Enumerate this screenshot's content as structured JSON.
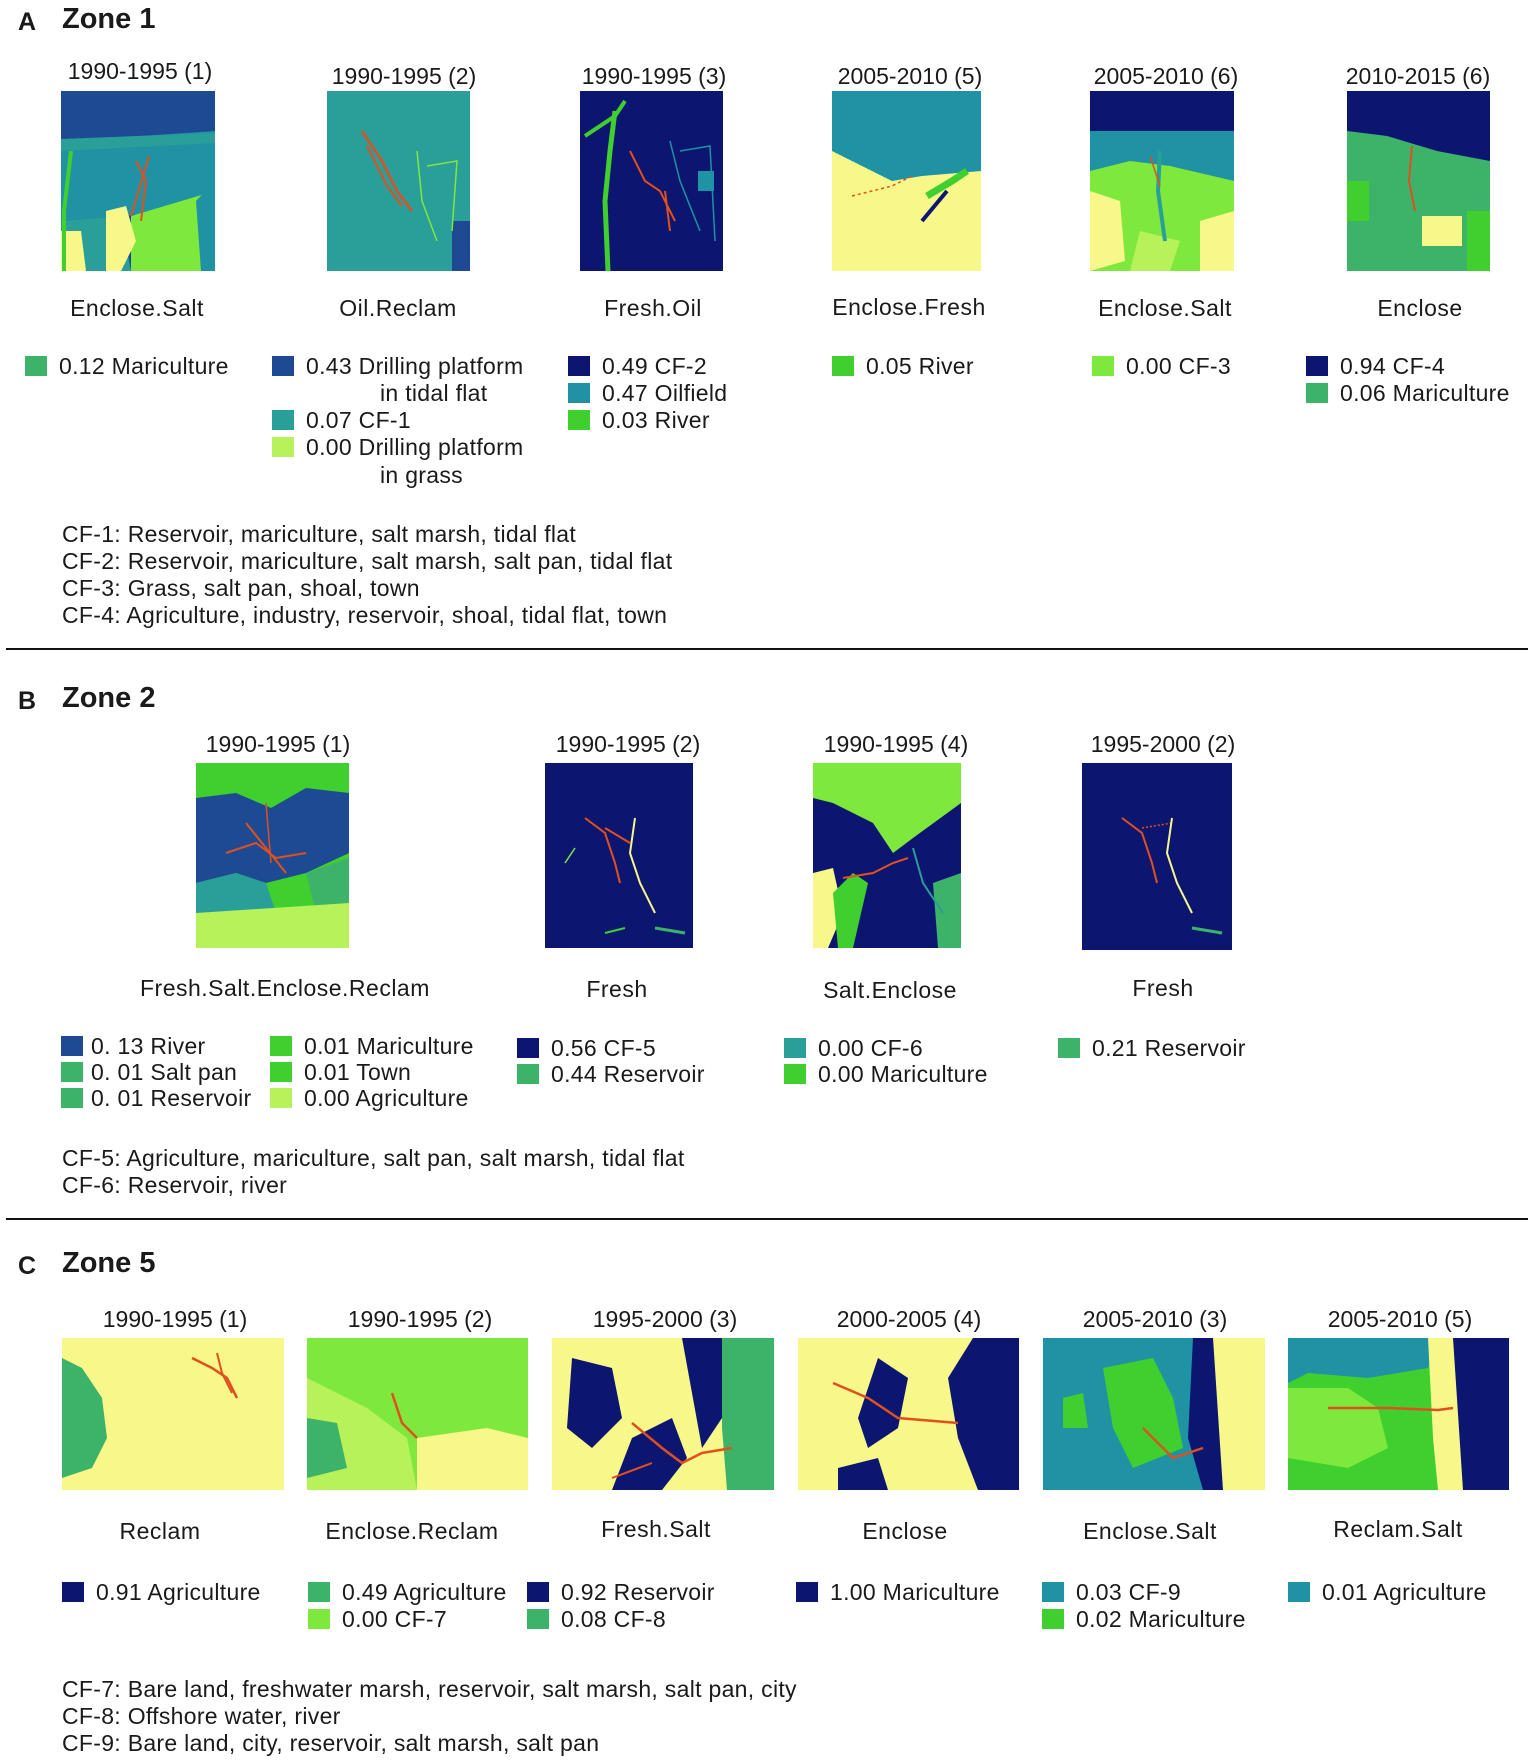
{
  "colors": {
    "navy": "#0c1670",
    "darkblue": "#1e4a93",
    "teal": "#1f93a4",
    "teal2": "#2a9e98",
    "seagreen": "#3db36a",
    "green": "#3fcf2e",
    "lime": "#7fe83c",
    "lightyellow": "#f8f78a",
    "yellowgreen": "#b7f25a",
    "red": "#e0501e"
  },
  "sections": [
    {
      "letter": "A",
      "title": "Zone 1",
      "panels": [
        {
          "period": "1990-1995 (1)",
          "caption": "Enclose.Salt",
          "legend": [
            {
              "swatch": "seagreen",
              "label": "0.12 Mariculture"
            }
          ]
        },
        {
          "period": "1990-1995 (2)",
          "caption": "Oil.Reclam",
          "legend": [
            {
              "swatch": "darkblue",
              "label": "0.43 Drilling platform",
              "cont": "in tidal  flat"
            },
            {
              "swatch": "teal2",
              "label": "0.07 CF-1"
            },
            {
              "swatch": "yellowgreen",
              "label": "0.00 Drilling platform",
              "cont": "in grass"
            }
          ]
        },
        {
          "period": "1990-1995 (3)",
          "caption": "Fresh.Oil",
          "legend": [
            {
              "swatch": "navy",
              "label": "0.49 CF-2"
            },
            {
              "swatch": "teal",
              "label": "0.47 Oilfield"
            },
            {
              "swatch": "green",
              "label": "0.03 River"
            }
          ]
        },
        {
          "period": "2005-2010 (5)",
          "caption": "Enclose.Fresh",
          "legend": [
            {
              "swatch": "green",
              "label": "0.05 River"
            }
          ]
        },
        {
          "period": "2005-2010 (6)",
          "caption": "Enclose.Salt",
          "legend": [
            {
              "swatch": "lime",
              "label": "0.00 CF-3"
            }
          ]
        },
        {
          "period": "2010-2015 (6)",
          "caption": "Enclose",
          "legend": [
            {
              "swatch": "navy",
              "label": "0.94 CF-4"
            },
            {
              "swatch": "seagreen",
              "label": "0.06 Mariculture"
            }
          ]
        }
      ],
      "notes": [
        "CF-1: Reservoir, mariculture, salt marsh, tidal flat",
        "CF-2: Reservoir, mariculture, salt marsh, salt pan, tidal flat",
        "CF-3: Grass, salt pan, shoal, town",
        "CF-4: Agriculture, industry, reservoir, shoal, tidal flat, town"
      ]
    },
    {
      "letter": "B",
      "title": "Zone 2",
      "panels": [
        {
          "period": "1990-1995  (1)",
          "caption": "Fresh.Salt.Enclose.Reclam",
          "legend": [
            {
              "swatch": "darkblue",
              "label": "0. 13  River"
            },
            {
              "swatch": "seagreen",
              "label": "0. 01  Salt pan"
            },
            {
              "swatch": "seagreen",
              "label": "0. 01  Reservoir"
            },
            {
              "swatch": "green",
              "label": "0.01 Mariculture"
            },
            {
              "swatch": "green",
              "label": "0.01 Town"
            },
            {
              "swatch": "yellowgreen",
              "label": "0.00 Agriculture"
            }
          ]
        },
        {
          "period": "1990-1995 (2)",
          "caption": "Fresh",
          "legend": [
            {
              "swatch": "navy",
              "label": "0.56 CF-5"
            },
            {
              "swatch": "seagreen",
              "label": "0.44 Reservoir"
            }
          ]
        },
        {
          "period": "1990-1995 (4)",
          "caption": "Salt.Enclose",
          "legend": [
            {
              "swatch": "teal2",
              "label": "0.00 CF-6"
            },
            {
              "swatch": "green",
              "label": "0.00 Mariculture"
            }
          ]
        },
        {
          "period": "1995-2000 (2)",
          "caption": "Fresh",
          "legend": [
            {
              "swatch": "seagreen",
              "label": "0.21 Reservoir"
            }
          ]
        }
      ],
      "notes": [
        "CF-5: Agriculture, mariculture, salt pan, salt marsh, tidal flat",
        "CF-6: Reservoir, river"
      ]
    },
    {
      "letter": "C",
      "title": "Zone 5",
      "panels": [
        {
          "period": "1990-1995 (1)",
          "caption": "Reclam",
          "legend": [
            {
              "swatch": "navy",
              "label": "0.91 Agriculture"
            }
          ]
        },
        {
          "period": "1990-1995 (2)",
          "caption": "Enclose.Reclam",
          "legend": [
            {
              "swatch": "seagreen",
              "label": "0.49 Agriculture"
            },
            {
              "swatch": "lime",
              "label": "0.00 CF-7"
            }
          ]
        },
        {
          "period": "1995-2000 (3)",
          "caption": "Fresh.Salt",
          "legend": [
            {
              "swatch": "navy",
              "label": "0.92 Reservoir"
            },
            {
              "swatch": "seagreen",
              "label": "0.08 CF-8"
            }
          ]
        },
        {
          "period": "2000-2005 (4)",
          "caption": "Enclose",
          "legend": [
            {
              "swatch": "navy",
              "label": "1.00 Mariculture"
            }
          ]
        },
        {
          "period": "2005-2010 (3)",
          "caption": "Enclose.Salt",
          "legend": [
            {
              "swatch": "teal",
              "label": "0.03 CF-9"
            },
            {
              "swatch": "green",
              "label": "0.02 Mariculture"
            }
          ]
        },
        {
          "period": "2005-2010 (5)",
          "caption": "Reclam.Salt",
          "legend": [
            {
              "swatch": "teal",
              "label": "0.01 Agriculture"
            }
          ]
        }
      ],
      "notes": [
        "CF-7: Bare land, freshwater marsh, reservoir, salt marsh, salt pan, city",
        "CF-8: Offshore water, river",
        "CF-9: Bare land, city, reservoir, salt marsh, salt pan"
      ]
    }
  ]
}
